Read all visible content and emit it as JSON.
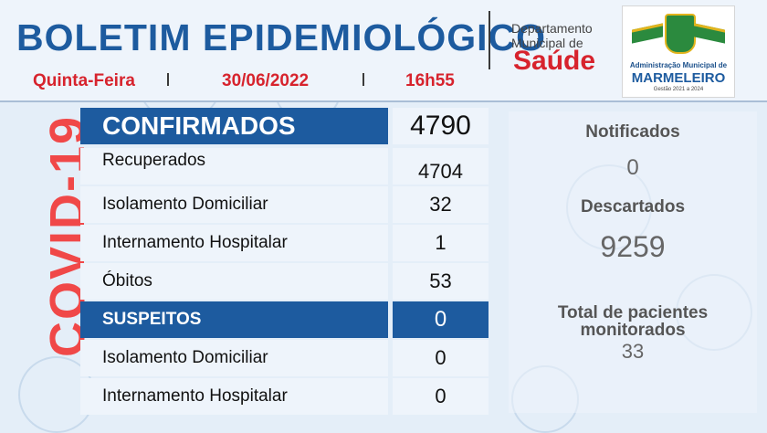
{
  "header": {
    "title": "BOLETIM EPIDEMIOLÓGICO",
    "weekday": "Quinta-Feira",
    "date": "30/06/2022",
    "time": "16h55"
  },
  "department": {
    "line1": "Departamento",
    "line2": "Municipal de",
    "name": "Saúde"
  },
  "logo": {
    "line1": "Administração Municipal de",
    "line2": "MARMELEIRO",
    "line3": "Gestão 2021 a 2024"
  },
  "side_label": "COVID-19",
  "confirmed": {
    "label": "CONFIRMADOS",
    "value": "4790",
    "rows": [
      {
        "label": "Recuperados",
        "value": "4704"
      },
      {
        "label": "Isolamento Domiciliar",
        "value": "32"
      },
      {
        "label": "Internamento Hospitalar",
        "value": "1"
      },
      {
        "label": "Óbitos",
        "value": "53"
      }
    ]
  },
  "suspected": {
    "label": "SUSPEITOS",
    "value": "0",
    "rows": [
      {
        "label": "Isolamento Domiciliar",
        "value": "0"
      },
      {
        "label": "Internamento Hospitalar",
        "value": "0"
      }
    ]
  },
  "summary": {
    "notified_label": "Notificados",
    "notified_value": "0",
    "discarded_label": "Descartados",
    "discarded_value": "9259",
    "monitored_label_1": "Total de pacientes",
    "monitored_label_2": "monitorados",
    "monitored_value": "33"
  },
  "colors": {
    "primary_blue": "#1d5b9f",
    "accent_red": "#d7232d",
    "covid_red": "#f04848"
  }
}
